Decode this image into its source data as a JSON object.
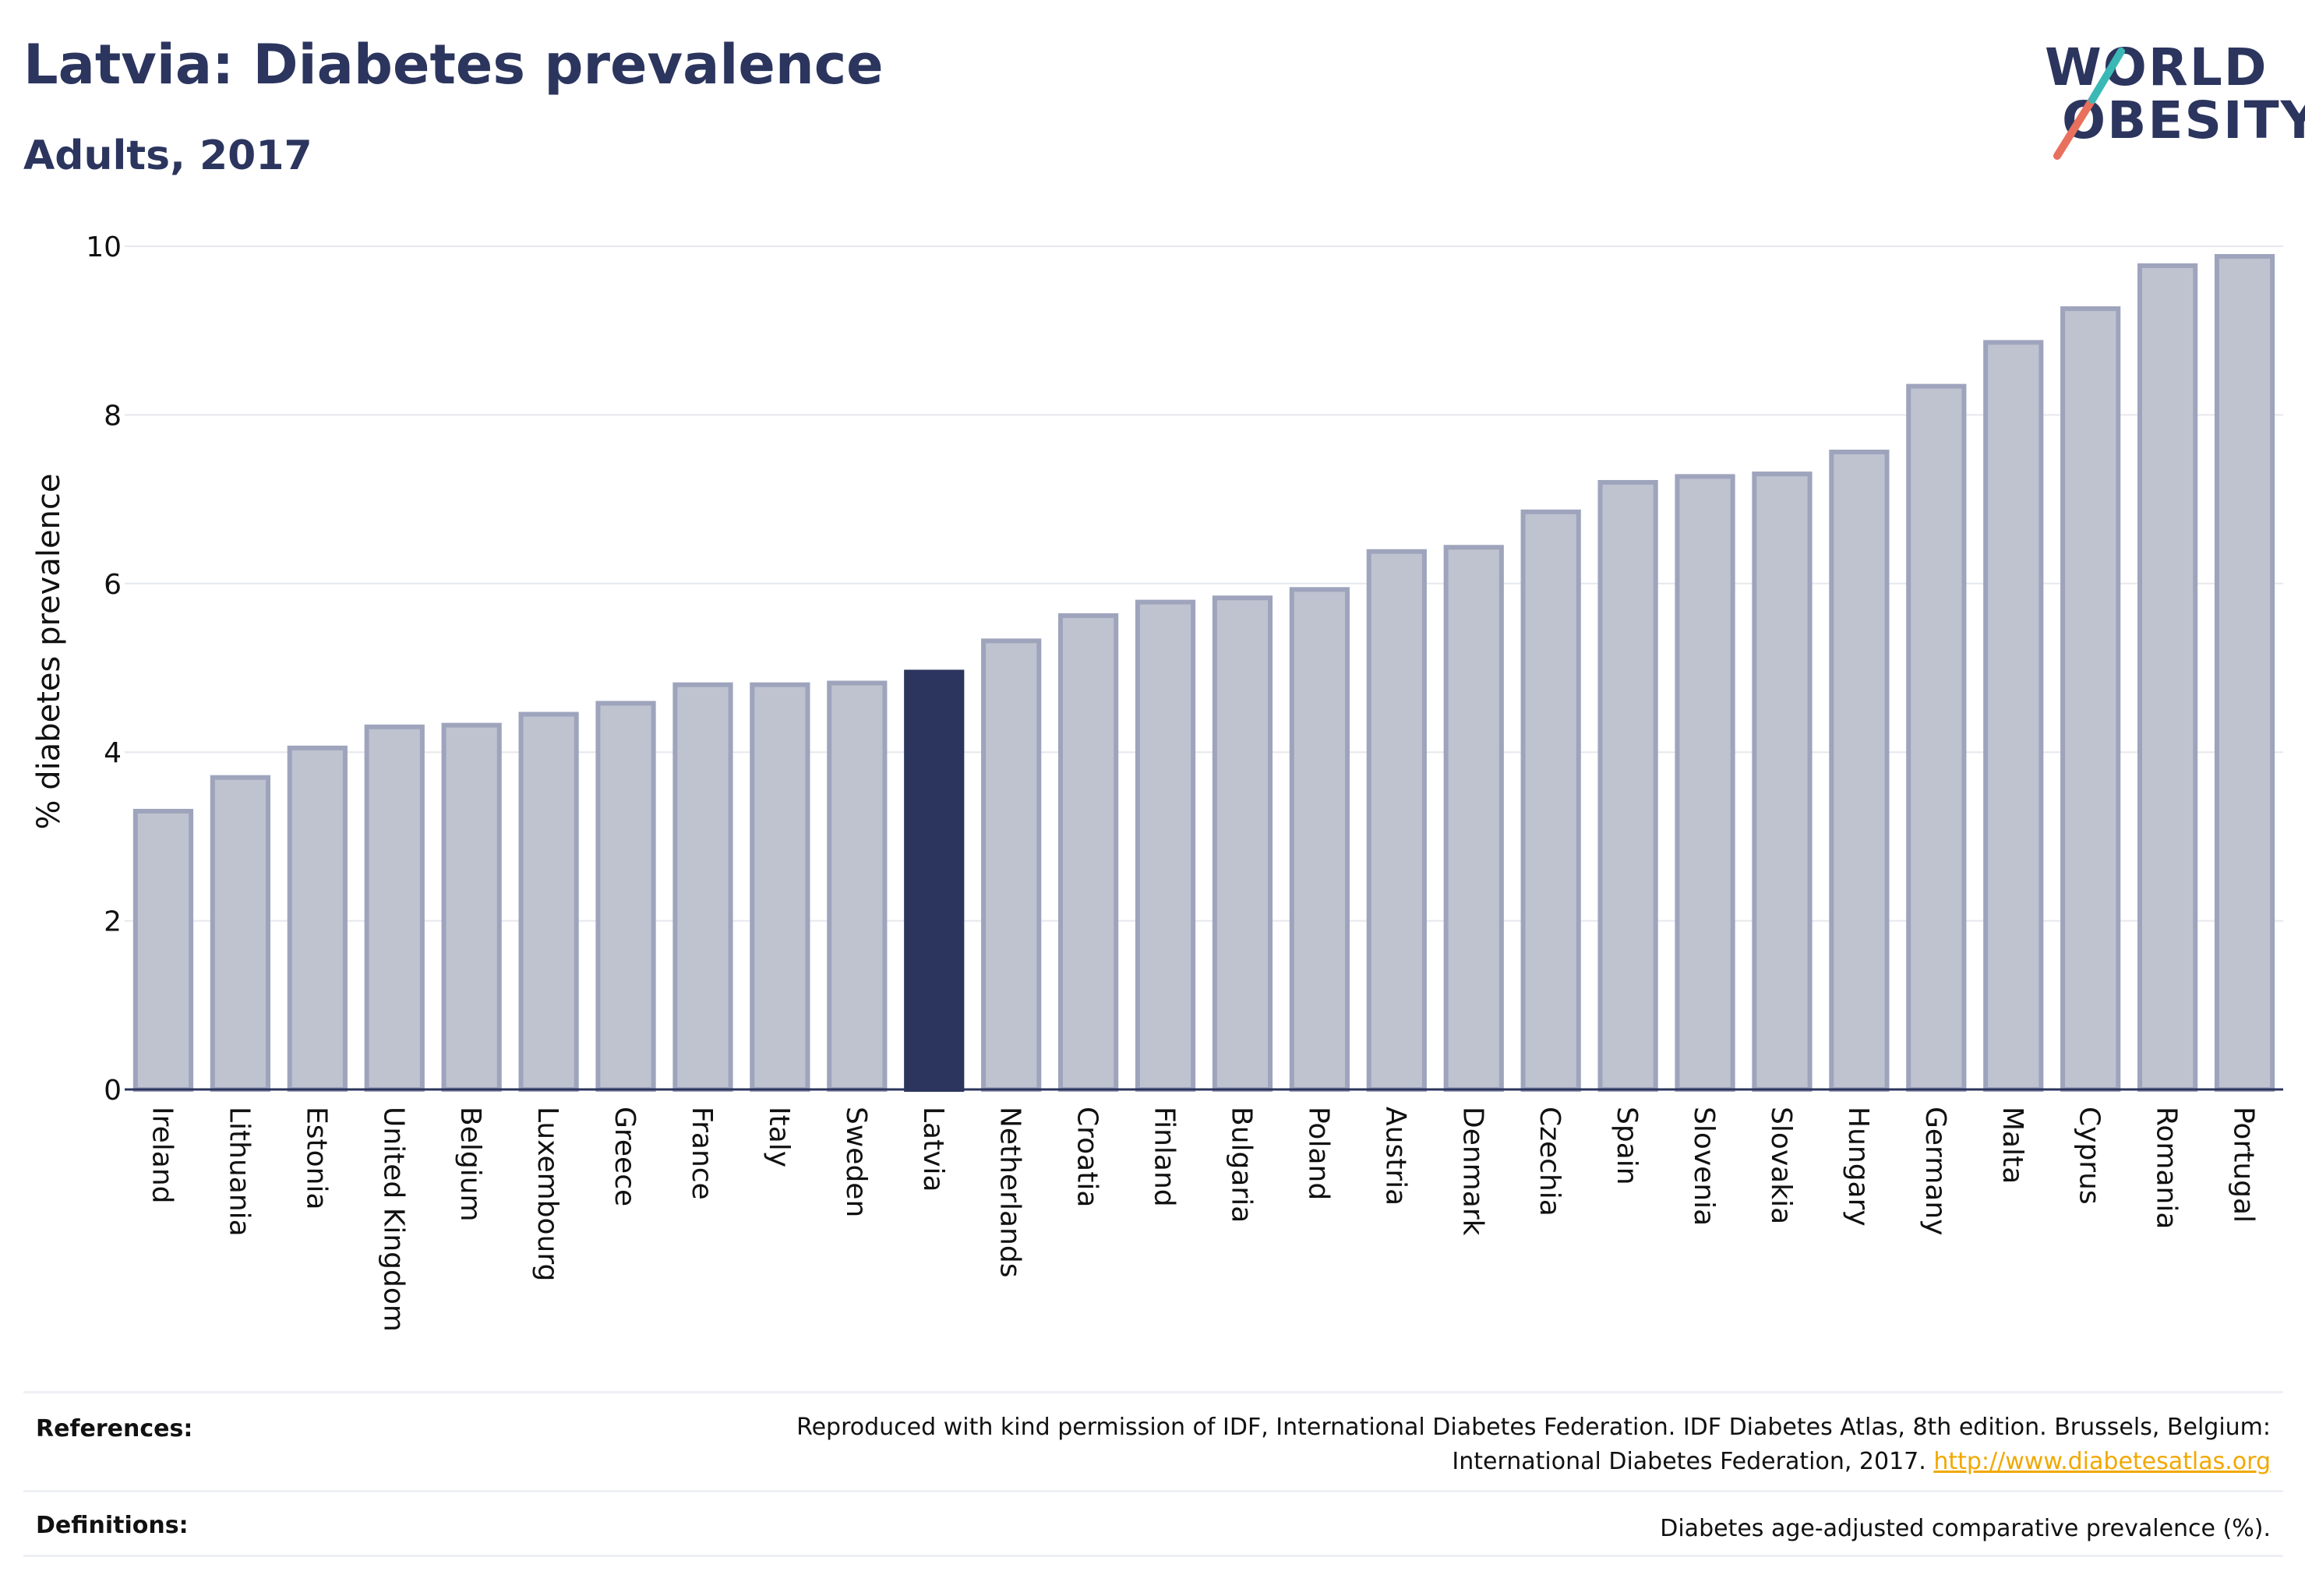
{
  "header": {
    "title": "Latvia: Diabetes prevalence",
    "subtitle": "Adults, 2017"
  },
  "logo": {
    "line1": "WORLD",
    "line2": "OBESITY",
    "accent_colors": [
      "#e8705d",
      "#3ab8b5"
    ]
  },
  "footer": {
    "references_label": "References:",
    "references_line1": "Reproduced with kind permission of IDF, International Diabetes Federation. IDF Diabetes Atlas, 8th edition. Brussels, Belgium:",
    "references_line2": "International Diabetes Federation, 2017.",
    "references_link": "http://www.diabetesatlas.org",
    "definitions_label": "Definitions:",
    "definitions_text": "Diabetes age-adjusted comparative prevalence (%)."
  },
  "colors": {
    "highlight": "#2b355e",
    "bar_fill": "#bfc3d0",
    "bar_border": "#9ea4bc"
  },
  "chart_data": {
    "type": "bar",
    "ylabel": "% diabetes prevalence",
    "xlabel": "",
    "ylim": [
      0,
      10
    ],
    "yticks": [
      0,
      2,
      4,
      6,
      8,
      10
    ],
    "grid": true,
    "highlight": "Latvia",
    "categories": [
      "Ireland",
      "Lithuania",
      "Estonia",
      "United Kingdom",
      "Belgium",
      "Luxembourg",
      "Greece",
      "France",
      "Italy",
      "Sweden",
      "Latvia",
      "Netherlands",
      "Croatia",
      "Finland",
      "Bulgaria",
      "Poland",
      "Austria",
      "Denmark",
      "Czechia",
      "Spain",
      "Slovenia",
      "Slovakia",
      "Hungary",
      "Germany",
      "Malta",
      "Cyprus",
      "Romania",
      "Portugal"
    ],
    "values": [
      3.3,
      3.7,
      4.05,
      4.3,
      4.32,
      4.45,
      4.58,
      4.8,
      4.8,
      4.82,
      4.95,
      5.32,
      5.62,
      5.78,
      5.83,
      5.93,
      6.38,
      6.43,
      6.85,
      7.2,
      7.27,
      7.3,
      7.56,
      8.34,
      8.86,
      9.26,
      9.77,
      9.88
    ]
  }
}
